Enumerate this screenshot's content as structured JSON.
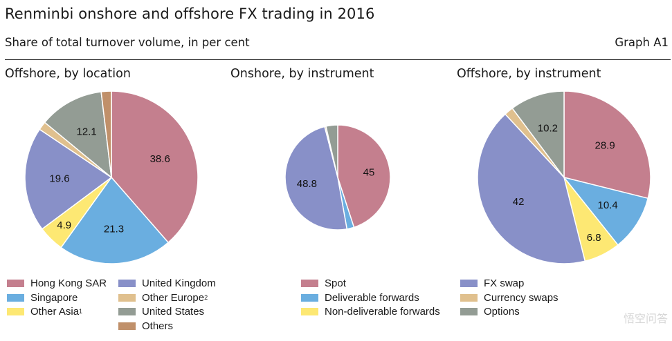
{
  "header": {
    "title": "Renminbi onshore and offshore FX trading in 2016",
    "subtitle": "Share of total turnover volume, in per cent",
    "graph_id": "Graph A1"
  },
  "colors": {
    "hong_kong": "#c47f8e",
    "singapore": "#6aaee0",
    "other_asia": "#fde873",
    "united_kingdom": "#8890c8",
    "other_europe": "#e0c08e",
    "united_states": "#939c94",
    "others": "#c0906a",
    "slice_border": "#ffffff"
  },
  "chart_data": [
    {
      "type": "pie",
      "title": "Offshore, by location",
      "slices": [
        {
          "name": "Hong Kong SAR",
          "value": 38.6,
          "label": "38.6",
          "color": "#c47f8e"
        },
        {
          "name": "Singapore",
          "value": 21.3,
          "label": "21.3",
          "color": "#6aaee0"
        },
        {
          "name": "Other Asia",
          "value": 4.9,
          "label": "4.9",
          "color": "#fde873"
        },
        {
          "name": "United Kingdom",
          "value": 19.6,
          "label": "19.6",
          "color": "#8890c8"
        },
        {
          "name": "Other Europe",
          "value": 1.6,
          "label": "",
          "color": "#e0c08e"
        },
        {
          "name": "United States",
          "value": 12.1,
          "label": "12.1",
          "color": "#939c94"
        },
        {
          "name": "Others",
          "value": 1.9,
          "label": "",
          "color": "#c0906a"
        }
      ]
    },
    {
      "type": "pie",
      "title": "Onshore, by instrument",
      "slices": [
        {
          "name": "Spot",
          "value": 45,
          "label": "45",
          "color": "#c47f8e"
        },
        {
          "name": "Deliverable forwards",
          "value": 2.2,
          "label": "",
          "color": "#6aaee0"
        },
        {
          "name": "Non-deliverable forwards",
          "value": 0,
          "label": "",
          "color": "#fde873"
        },
        {
          "name": "FX swap",
          "value": 48.8,
          "label": "48.8",
          "color": "#8890c8"
        },
        {
          "name": "Currency swaps",
          "value": 0.4,
          "label": "",
          "color": "#e0c08e"
        },
        {
          "name": "Options",
          "value": 3.6,
          "label": "",
          "color": "#939c94"
        }
      ]
    },
    {
      "type": "pie",
      "title": "Offshore, by instrument",
      "slices": [
        {
          "name": "Spot",
          "value": 28.9,
          "label": "28.9",
          "color": "#c47f8e"
        },
        {
          "name": "Deliverable forwards",
          "value": 10.4,
          "label": "10.4",
          "color": "#6aaee0"
        },
        {
          "name": "Non-deliverable forwards",
          "value": 6.8,
          "label": "6.8",
          "color": "#fde873"
        },
        {
          "name": "FX swap",
          "value": 42,
          "label": "42",
          "color": "#8890c8"
        },
        {
          "name": "Currency swaps",
          "value": 1.7,
          "label": "",
          "color": "#e0c08e"
        },
        {
          "name": "Options",
          "value": 10.2,
          "label": "10.2",
          "color": "#939c94"
        }
      ]
    }
  ],
  "legends": {
    "location": [
      {
        "label": "Hong Kong SAR",
        "color": "#c47f8e",
        "sup": ""
      },
      {
        "label": "Singapore",
        "color": "#6aaee0",
        "sup": ""
      },
      {
        "label": "Other Asia",
        "color": "#fde873",
        "sup": "1"
      },
      {
        "label": "United Kingdom",
        "color": "#8890c8",
        "sup": ""
      },
      {
        "label": "Other Europe",
        "color": "#e0c08e",
        "sup": "2"
      },
      {
        "label": "United States",
        "color": "#939c94",
        "sup": ""
      },
      {
        "label": "Others",
        "color": "#c0906a",
        "sup": ""
      }
    ],
    "instrument": [
      {
        "label": "Spot",
        "color": "#c47f8e"
      },
      {
        "label": "Deliverable forwards",
        "color": "#6aaee0"
      },
      {
        "label": "Non-deliverable forwards",
        "color": "#fde873"
      },
      {
        "label": "FX swap",
        "color": "#8890c8"
      },
      {
        "label": "Currency swaps",
        "color": "#e0c08e"
      },
      {
        "label": "Options",
        "color": "#939c94"
      }
    ]
  },
  "watermark": "悟空问答"
}
